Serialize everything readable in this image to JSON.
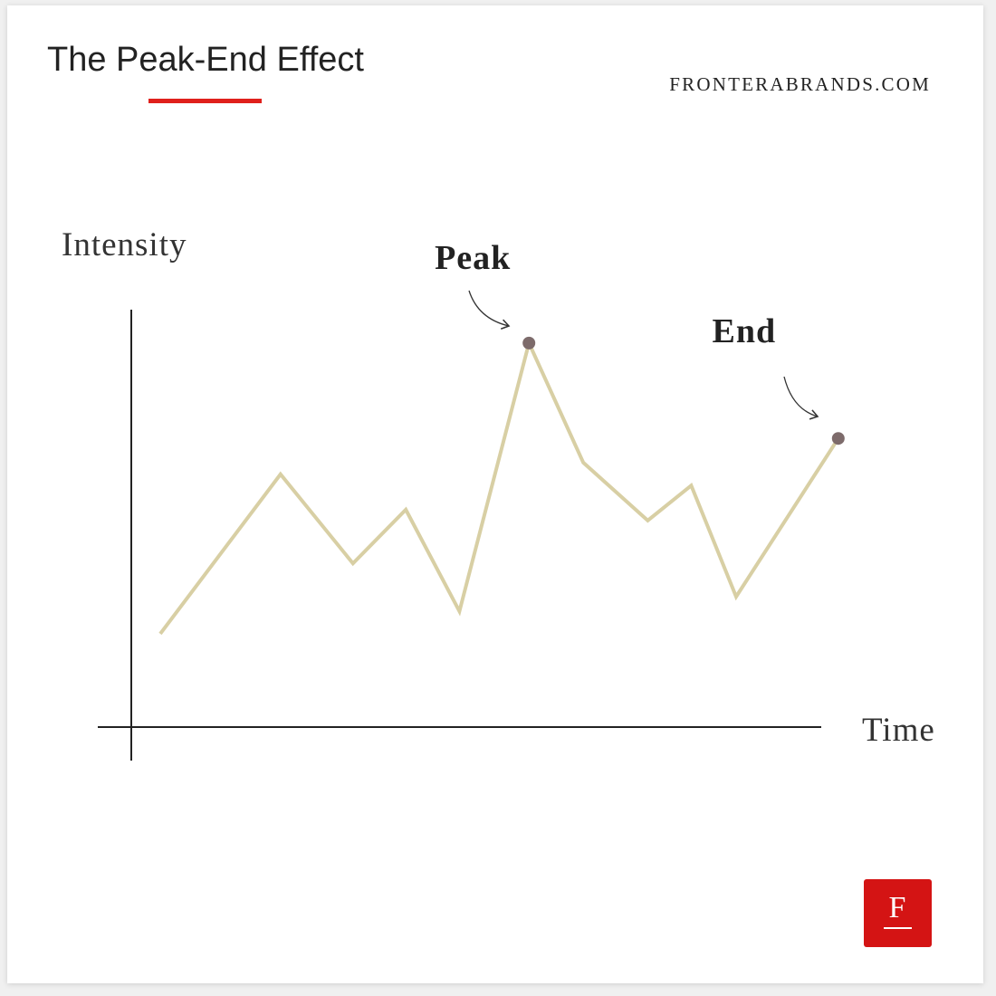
{
  "chart_data": {
    "type": "line",
    "title": "The Peak-End Effect",
    "source": "FRONTERABRANDS.COM",
    "x_label": "Time",
    "y_label": "Intensity",
    "x": [
      4,
      20.6,
      30.6,
      37.9,
      45.3,
      54.9,
      62.4,
      71.3,
      77.3,
      83.5,
      97.6
    ],
    "series": [
      {
        "color": "#d8cfa4",
        "values": [
          22.4,
          60.7,
          39.3,
          52.2,
          27.8,
          92.2,
          63.5,
          49.6,
          58,
          31.3,
          69.3
        ]
      }
    ],
    "xlim": [
      0,
      100
    ],
    "ylim": [
      0,
      100
    ],
    "annotations": [
      {
        "text": "Peak",
        "x": 54.9,
        "y": 92.2
      },
      {
        "text": "End",
        "x": 97.6,
        "y": 69.3
      }
    ],
    "marker_color": "#7d6b6b"
  },
  "logo": "F"
}
